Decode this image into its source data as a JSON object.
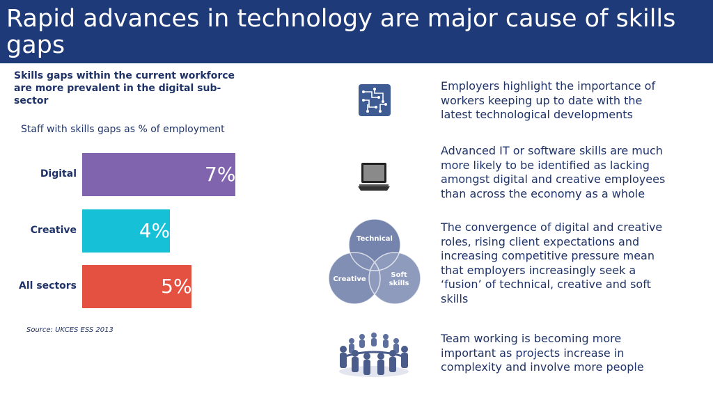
{
  "slide": {
    "title": "Rapid advances in technology are major cause of skills gaps",
    "subtitle": "Skills gaps within the current workforce are more prevalent in the digital sub-sector",
    "chart_caption": "Staff with skills gaps as % of employment",
    "source": "Source: UKCES ESS 2013"
  },
  "chart_data": {
    "type": "bar",
    "orientation": "horizontal",
    "categories": [
      "Digital",
      "Creative",
      "All sectors"
    ],
    "values": [
      7,
      4,
      5
    ],
    "value_labels": [
      "7%",
      "4%",
      "5%"
    ],
    "colors": [
      "#8064ae",
      "#16c1d8",
      "#e55140"
    ],
    "xlim": [
      0,
      7
    ]
  },
  "points": [
    {
      "icon": "circuit-icon",
      "text": "Employers highlight the importance of workers keeping up to date with the latest technological developments"
    },
    {
      "icon": "laptop-icon",
      "text": "Advanced IT or software skills are much more likely to be identified as lacking amongst digital and creative employees than across the economy as a whole"
    },
    {
      "icon": "venn-icon",
      "text": "The convergence of digital and creative roles, rising client expectations and increasing competitive pressure mean that employers increasingly seek a ‘fusion’ of technical, creative and soft skills"
    },
    {
      "icon": "team-circle-icon",
      "text": "Team working is becoming more important as projects increase in complexity and involve more people"
    }
  ],
  "venn": {
    "top": "Technical",
    "left": "Creative",
    "right": "Soft skills"
  }
}
